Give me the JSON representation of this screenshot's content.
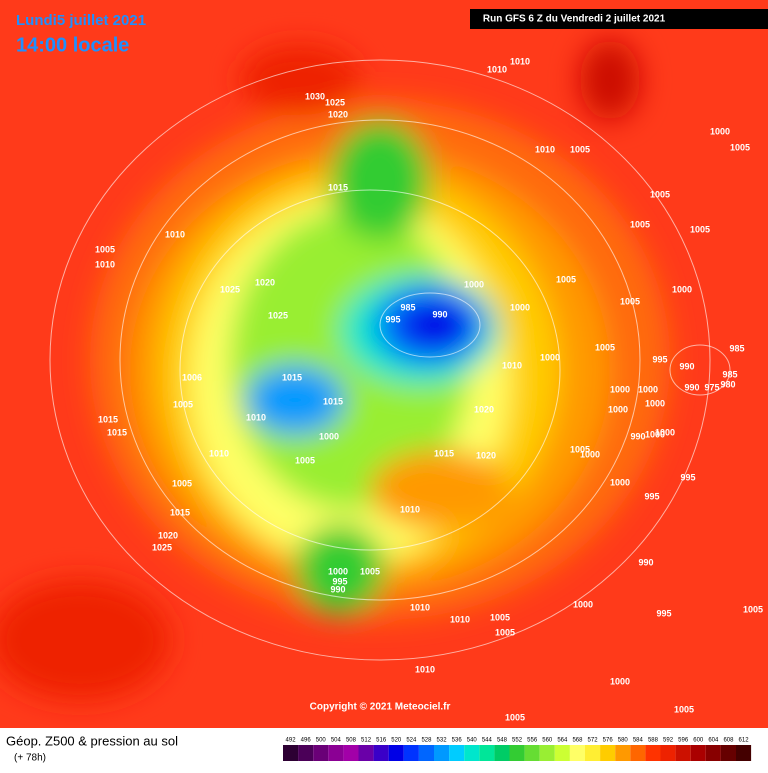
{
  "header": {
    "date": "Lundi5 juillet 2021",
    "time": "14:00 locale",
    "run": "Run GFS 6 Z du Vendredi 2 juillet 2021"
  },
  "copyright": "Copyright © 2021 Meteociel.fr",
  "legend": {
    "title": "Géop. Z500 & pression au sol",
    "subtitle": "(+ 78h)",
    "ticks": [
      492,
      496,
      500,
      504,
      508,
      512,
      516,
      520,
      524,
      528,
      532,
      536,
      540,
      544,
      548,
      552,
      556,
      560,
      564,
      568,
      572,
      576,
      580,
      584,
      588,
      592,
      596,
      600,
      604,
      608,
      612
    ],
    "colors": [
      "#2d0033",
      "#4b0058",
      "#6a0077",
      "#8b0094",
      "#a200a8",
      "#6a00a8",
      "#3a00c8",
      "#0000e6",
      "#0033ff",
      "#0066ff",
      "#0099ff",
      "#00ccff",
      "#00e6cc",
      "#00e699",
      "#00cc66",
      "#33cc33",
      "#66dd33",
      "#99ee33",
      "#ccff33",
      "#ffff66",
      "#ffee33",
      "#ffcc00",
      "#ff9900",
      "#ff6600",
      "#ff3300",
      "#ee2200",
      "#cc1100",
      "#aa0000",
      "#880000",
      "#660000",
      "#440000"
    ]
  },
  "isobar_labels": [
    1030,
    1025,
    1020,
    1010,
    1010,
    1000,
    1005,
    1010,
    1005,
    1015,
    1010,
    1005,
    1010,
    1025,
    1020,
    1000,
    1005,
    1005,
    1005,
    1005,
    1005,
    1000,
    1000,
    985,
    990,
    995,
    1025,
    1015,
    1000,
    1010,
    1005,
    995,
    990,
    985,
    990,
    975,
    985,
    980,
    1006,
    1005,
    1000,
    1000,
    1000,
    1000,
    1015,
    1010,
    1020,
    1015,
    1015,
    990,
    1000,
    1000,
    1000,
    1005,
    1010,
    1015,
    1020,
    1005,
    1000,
    995,
    1005,
    1000,
    995,
    1010,
    1015,
    1020,
    1025,
    1000,
    995,
    990,
    1005,
    990,
    1000,
    1010,
    1010,
    1005,
    1005,
    995,
    1005,
    1010,
    1000,
    1005,
    1005
  ]
}
